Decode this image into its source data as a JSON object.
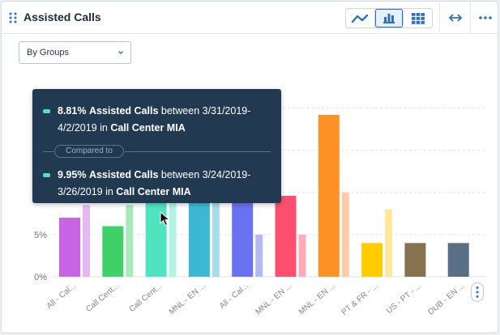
{
  "header": {
    "title": "Assisted Calls",
    "view_buttons": [
      {
        "name": "line-chart-view",
        "active": false
      },
      {
        "name": "bar-chart-view",
        "active": true
      },
      {
        "name": "table-view",
        "active": false
      }
    ]
  },
  "filter": {
    "selected": "By Groups"
  },
  "colors": {
    "accent": "#2f6fc5",
    "tooltip_bg": "#213a52",
    "tooltip_swatch": "#4fe3c0"
  },
  "chart_data": {
    "type": "bar",
    "categories": [
      "All - Cal...",
      "Call Cent...",
      "Call Cent...",
      "MNL - EN ...",
      "All - Cal...",
      "MNL - EN ...",
      "MNL - EN ...",
      "PT & FR - ...",
      "US - PT - ...",
      "DUB - EN ..."
    ],
    "series": [
      {
        "values": [
          7.0,
          6.0,
          8.81,
          9.0,
          9.0,
          9.6,
          19.2,
          4.0,
          4.0,
          4.0
        ]
      },
      {
        "values": [
          8.5,
          8.5,
          9.95,
          9.0,
          5.0,
          5.0,
          10.0,
          8.0,
          null,
          null
        ]
      }
    ],
    "bar_colors": [
      "#c764e6",
      "#3fd06a",
      "#4fe3c0",
      "#3db8d4",
      "#6b72f2",
      "#ff4f6e",
      "#ff9226",
      "#ffcc00",
      "#85734f",
      "#5a6f86"
    ],
    "light_colors": [
      "#e5b8f3",
      "#a6ebb8",
      "#b3f3e4",
      "#a7dde9",
      "#b4b8f7",
      "#ffaab8",
      "#ffccaa",
      "#ffe89a",
      null,
      null
    ],
    "y_ticks": [
      "0%",
      "5%"
    ],
    "ylim": [
      0,
      21.5
    ],
    "grid": true
  },
  "tooltip": {
    "entry1": {
      "value": "8.81%",
      "metric": "Assisted Calls",
      "between": "between 3/31/2019-4/2/2019 in",
      "group": "Call Center MIA"
    },
    "compared_to": "Compared to",
    "entry2": {
      "value": "9.95%",
      "metric": "Assisted Calls",
      "between": "between 3/24/2019-3/26/2019 in",
      "group": "Call Center MIA"
    }
  }
}
